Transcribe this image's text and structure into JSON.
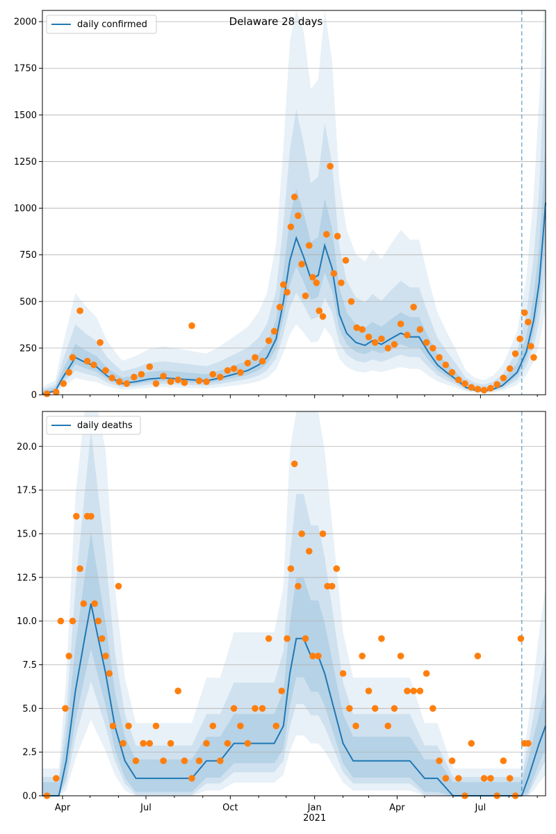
{
  "chart_data": [
    {
      "type": "line",
      "title": "Delaware 28 days",
      "xlabel": "",
      "ylabel": "",
      "xlim": [
        "2020-03-10",
        "2021-09-10"
      ],
      "ylim": [
        0,
        2060
      ],
      "yticks": [
        0,
        250,
        500,
        750,
        1000,
        1250,
        1500,
        1750,
        2000
      ],
      "ytick_labels": [
        "0",
        "250",
        "500",
        "750",
        "1000",
        "1250",
        "1500",
        "1750",
        "2000"
      ],
      "xticks": [
        "2020-04-01",
        "2020-07-01",
        "2020-10-01",
        "2021-01-01",
        "2021-04-01",
        "2021-07-01"
      ],
      "xtick_labels": [],
      "grid": "horizontal",
      "legend": "top-left",
      "vline": "2021-08-15",
      "colors": {
        "line": "#1f77b4",
        "points": "#ff7f0e",
        "band": "#1f77b4"
      },
      "series": [
        {
          "name": "daily confirmed",
          "kind": "line",
          "x": [
            "2020-03-10",
            "2020-03-24",
            "2020-04-01",
            "2020-04-15",
            "2020-04-25",
            "2020-05-08",
            "2020-05-20",
            "2020-06-05",
            "2020-06-20",
            "2020-07-05",
            "2020-07-20",
            "2020-08-05",
            "2020-08-20",
            "2020-09-05",
            "2020-09-20",
            "2020-10-05",
            "2020-10-20",
            "2020-11-01",
            "2020-11-10",
            "2020-11-20",
            "2020-11-28",
            "2020-12-05",
            "2020-12-12",
            "2020-12-20",
            "2020-12-28",
            "2021-01-05",
            "2021-01-12",
            "2021-01-20",
            "2021-01-28",
            "2021-02-05",
            "2021-02-15",
            "2021-02-25",
            "2021-03-05",
            "2021-03-15",
            "2021-03-25",
            "2021-04-05",
            "2021-04-15",
            "2021-04-25",
            "2021-05-05",
            "2021-05-15",
            "2021-05-25",
            "2021-06-05",
            "2021-06-15",
            "2021-06-25",
            "2021-07-05",
            "2021-07-15",
            "2021-07-25",
            "2021-08-01",
            "2021-08-10",
            "2021-08-20",
            "2021-08-28",
            "2021-09-03",
            "2021-09-08",
            "2021-09-10"
          ],
          "y": [
            5,
            20,
            90,
            200,
            175,
            150,
            100,
            60,
            70,
            85,
            90,
            85,
            80,
            75,
            90,
            110,
            130,
            160,
            200,
            300,
            500,
            720,
            840,
            740,
            620,
            640,
            800,
            680,
            430,
            330,
            280,
            265,
            290,
            270,
            300,
            330,
            310,
            310,
            230,
            160,
            120,
            80,
            40,
            25,
            20,
            30,
            50,
            80,
            120,
            230,
            400,
            600,
            900,
            1030
          ]
        },
        {
          "name": "",
          "kind": "scatter",
          "x": [
            "2020-03-15",
            "2020-03-25",
            "2020-04-02",
            "2020-04-08",
            "2020-04-12",
            "2020-04-20",
            "2020-04-28",
            "2020-05-05",
            "2020-05-12",
            "2020-05-18",
            "2020-05-25",
            "2020-06-02",
            "2020-06-10",
            "2020-06-18",
            "2020-06-26",
            "2020-07-05",
            "2020-07-12",
            "2020-07-20",
            "2020-07-28",
            "2020-08-05",
            "2020-08-12",
            "2020-08-20",
            "2020-08-28",
            "2020-09-05",
            "2020-09-12",
            "2020-09-20",
            "2020-09-28",
            "2020-10-05",
            "2020-10-12",
            "2020-10-20",
            "2020-10-28",
            "2020-11-05",
            "2020-11-12",
            "2020-11-18",
            "2020-11-24",
            "2020-11-28",
            "2020-12-02",
            "2020-12-06",
            "2020-12-10",
            "2020-12-14",
            "2020-12-18",
            "2020-12-22",
            "2020-12-26",
            "2020-12-30",
            "2021-01-03",
            "2021-01-06",
            "2021-01-10",
            "2021-01-14",
            "2021-01-18",
            "2021-01-22",
            "2021-01-26",
            "2021-01-30",
            "2021-02-04",
            "2021-02-10",
            "2021-02-16",
            "2021-02-22",
            "2021-03-01",
            "2021-03-08",
            "2021-03-15",
            "2021-03-22",
            "2021-03-29",
            "2021-04-05",
            "2021-04-12",
            "2021-04-19",
            "2021-04-26",
            "2021-05-03",
            "2021-05-10",
            "2021-05-17",
            "2021-05-24",
            "2021-05-31",
            "2021-06-07",
            "2021-06-14",
            "2021-06-21",
            "2021-06-28",
            "2021-07-05",
            "2021-07-12",
            "2021-07-19",
            "2021-07-26",
            "2021-08-02",
            "2021-08-08",
            "2021-08-13",
            "2021-08-18",
            "2021-08-22",
            "2021-08-25",
            "2021-08-28"
          ],
          "y": [
            5,
            15,
            60,
            120,
            200,
            450,
            180,
            160,
            280,
            130,
            90,
            70,
            60,
            95,
            110,
            150,
            60,
            100,
            70,
            80,
            65,
            370,
            75,
            70,
            110,
            95,
            130,
            140,
            120,
            170,
            200,
            180,
            290,
            340,
            470,
            590,
            550,
            900,
            1060,
            960,
            700,
            530,
            800,
            630,
            600,
            450,
            420,
            860,
            1225,
            650,
            850,
            600,
            720,
            500,
            360,
            350,
            310,
            280,
            300,
            250,
            270,
            380,
            320,
            470,
            350,
            280,
            250,
            200,
            160,
            120,
            80,
            60,
            40,
            30,
            25,
            35,
            55,
            90,
            140,
            220,
            300,
            440,
            390,
            260,
            200
          ]
        }
      ]
    },
    {
      "type": "line",
      "title": "",
      "xlabel": "",
      "ylabel": "",
      "xlim": [
        "2020-03-10",
        "2021-09-10"
      ],
      "ylim": [
        0,
        22
      ],
      "yticks": [
        0,
        2.5,
        5,
        7.5,
        10,
        12.5,
        15,
        17.5,
        20
      ],
      "ytick_labels": [
        "0.0",
        "2.5",
        "5.0",
        "7.5",
        "10.0",
        "12.5",
        "15.0",
        "17.5",
        "20.0"
      ],
      "xticks": [
        "2020-04-01",
        "2020-07-01",
        "2020-10-01",
        "2021-01-01",
        "2021-04-01",
        "2021-07-01"
      ],
      "xtick_labels": [
        "Apr",
        "Jul",
        "Oct",
        "Jan\n2021",
        "Apr",
        "Jul"
      ],
      "grid": "horizontal",
      "legend": "top-left",
      "vline": "2021-08-15",
      "colors": {
        "line": "#1f77b4",
        "points": "#ff7f0e",
        "band": "#1f77b4"
      },
      "series": [
        {
          "name": "daily deaths",
          "kind": "line",
          "x": [
            "2020-03-10",
            "2020-03-28",
            "2020-04-05",
            "2020-04-15",
            "2020-04-25",
            "2020-05-02",
            "2020-05-10",
            "2020-05-18",
            "2020-05-28",
            "2020-06-08",
            "2020-06-20",
            "2020-07-05",
            "2020-07-20",
            "2020-08-05",
            "2020-08-20",
            "2020-09-05",
            "2020-09-20",
            "2020-10-05",
            "2020-10-20",
            "2020-11-05",
            "2020-11-18",
            "2020-11-28",
            "2020-12-05",
            "2020-12-12",
            "2020-12-20",
            "2020-12-28",
            "2021-01-05",
            "2021-01-12",
            "2021-01-22",
            "2021-02-01",
            "2021-02-12",
            "2021-02-22",
            "2021-03-01",
            "2021-03-15",
            "2021-04-01",
            "2021-04-15",
            "2021-05-01",
            "2021-05-15",
            "2021-06-01",
            "2021-06-15",
            "2021-07-01",
            "2021-07-15",
            "2021-08-01",
            "2021-08-15",
            "2021-08-22",
            "2021-08-28",
            "2021-09-03",
            "2021-09-10"
          ],
          "y": [
            0,
            0,
            2,
            6,
            9,
            11,
            9,
            7,
            4,
            2,
            1,
            1,
            1,
            1,
            1,
            2,
            2,
            3,
            3,
            3,
            3,
            4,
            7,
            9,
            9,
            8,
            8,
            7,
            5,
            3,
            2,
            2,
            2,
            2,
            2,
            2,
            1,
            1,
            0,
            0,
            0,
            0,
            0,
            0,
            1,
            2,
            3,
            4
          ]
        },
        {
          "name": "",
          "kind": "scatter",
          "x": [
            "2020-03-15",
            "2020-03-25",
            "2020-03-30",
            "2020-04-04",
            "2020-04-08",
            "2020-04-12",
            "2020-04-16",
            "2020-04-20",
            "2020-04-24",
            "2020-04-28",
            "2020-05-02",
            "2020-05-06",
            "2020-05-10",
            "2020-05-14",
            "2020-05-18",
            "2020-05-22",
            "2020-05-26",
            "2020-06-01",
            "2020-06-06",
            "2020-06-12",
            "2020-06-20",
            "2020-06-28",
            "2020-07-05",
            "2020-07-12",
            "2020-07-20",
            "2020-07-28",
            "2020-08-05",
            "2020-08-12",
            "2020-08-20",
            "2020-08-28",
            "2020-09-05",
            "2020-09-12",
            "2020-09-20",
            "2020-09-28",
            "2020-10-05",
            "2020-10-12",
            "2020-10-20",
            "2020-10-28",
            "2020-11-05",
            "2020-11-12",
            "2020-11-20",
            "2020-11-26",
            "2020-12-02",
            "2020-12-06",
            "2020-12-10",
            "2020-12-14",
            "2020-12-18",
            "2020-12-22",
            "2020-12-26",
            "2020-12-30",
            "2021-01-05",
            "2021-01-10",
            "2021-01-15",
            "2021-01-20",
            "2021-01-25",
            "2021-02-01",
            "2021-02-08",
            "2021-02-15",
            "2021-02-22",
            "2021-03-01",
            "2021-03-08",
            "2021-03-15",
            "2021-03-22",
            "2021-03-29",
            "2021-04-05",
            "2021-04-12",
            "2021-04-19",
            "2021-04-26",
            "2021-05-03",
            "2021-05-10",
            "2021-05-17",
            "2021-05-24",
            "2021-05-31",
            "2021-06-07",
            "2021-06-14",
            "2021-06-21",
            "2021-06-28",
            "2021-07-05",
            "2021-07-12",
            "2021-07-19",
            "2021-07-26",
            "2021-08-02",
            "2021-08-08",
            "2021-08-14",
            "2021-08-18",
            "2021-08-22"
          ],
          "y": [
            0,
            1,
            10,
            5,
            8,
            10,
            16,
            13,
            11,
            16,
            16,
            11,
            10,
            9,
            8,
            7,
            4,
            12,
            3,
            4,
            2,
            3,
            3,
            4,
            2,
            3,
            6,
            2,
            1,
            2,
            3,
            4,
            2,
            3,
            5,
            4,
            3,
            5,
            5,
            9,
            4,
            6,
            9,
            13,
            19,
            12,
            15,
            9,
            14,
            8,
            8,
            15,
            12,
            12,
            13,
            7,
            5,
            4,
            8,
            6,
            5,
            9,
            4,
            5,
            8,
            6,
            6,
            6,
            7,
            5,
            2,
            1,
            2,
            1,
            0,
            3,
            8,
            1,
            1,
            0,
            2,
            1,
            0,
            9,
            3,
            3
          ]
        }
      ]
    }
  ]
}
